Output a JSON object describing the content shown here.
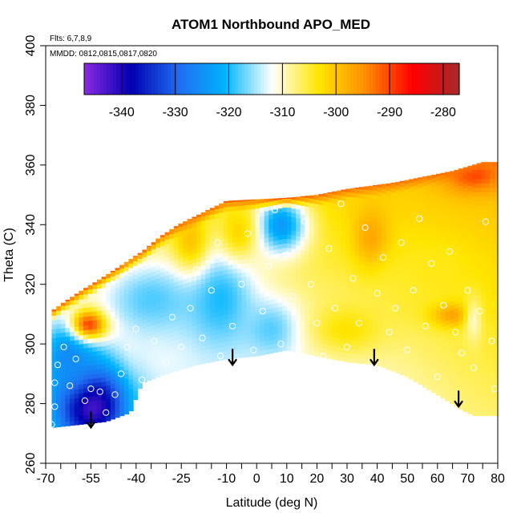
{
  "chart_data": {
    "type": "heatmap",
    "title": "ATOM1 Northbound APO_MED",
    "notes": [
      "Flts: 6,7,8,9",
      "MMDD: 0812,0815,0817,0820"
    ],
    "xlabel": "Latitude (deg N)",
    "ylabel": "Theta (C)",
    "xlim": [
      -70,
      80
    ],
    "ylim": [
      260,
      400
    ],
    "x_tick_labels": [
      "-70",
      "-55",
      "-40",
      "-25",
      "-10",
      "0",
      "10",
      "20",
      "30",
      "40",
      "50",
      "60",
      "70",
      "80"
    ],
    "x_tick_values": [
      -70,
      -55,
      -40,
      -25,
      -10,
      0,
      10,
      20,
      30,
      40,
      50,
      60,
      70,
      80
    ],
    "x_minor_ticks": [
      -65,
      -60,
      -50,
      -45,
      -35,
      -30,
      -20,
      -15,
      -5,
      5,
      15,
      25,
      35,
      45,
      55,
      65,
      75
    ],
    "y_tick_labels": [
      "260",
      "280",
      "300",
      "320",
      "340",
      "360",
      "380",
      "400"
    ],
    "y_tick_values": [
      260,
      280,
      300,
      320,
      340,
      360,
      380,
      400
    ],
    "colorbar": {
      "range": [
        -347,
        -277
      ],
      "tick_labels": [
        "-340",
        "-330",
        "-320",
        "-310",
        "-300",
        "-290",
        "-280"
      ],
      "tick_values": [
        -340,
        -330,
        -320,
        -310,
        -300,
        -290,
        -280
      ],
      "colors": [
        "#8a2be2",
        "#0000b0",
        "#1f6cf0",
        "#00b4ff",
        "#ffffff",
        "#ffe600",
        "#ff8c00",
        "#ff0000",
        "#a52a2a"
      ]
    },
    "field": {
      "upper_boundary": [
        [
          -68,
          311
        ],
        [
          -64,
          314
        ],
        [
          -58,
          318
        ],
        [
          -50,
          323
        ],
        [
          -44,
          327
        ],
        [
          -38,
          331
        ],
        [
          -32,
          336
        ],
        [
          -26,
          340
        ],
        [
          -20,
          343
        ],
        [
          -14,
          346
        ],
        [
          -10,
          348
        ],
        [
          10,
          349
        ],
        [
          20,
          350
        ],
        [
          30,
          352
        ],
        [
          45,
          354
        ],
        [
          55,
          356
        ],
        [
          65,
          358
        ],
        [
          75,
          361
        ]
      ],
      "lower_boundary": [
        [
          -68,
          272
        ],
        [
          -50,
          274
        ],
        [
          -42,
          277
        ],
        [
          -38,
          287
        ],
        [
          -30,
          290
        ],
        [
          -20,
          293
        ],
        [
          -10,
          295
        ],
        [
          0,
          296
        ],
        [
          10,
          298
        ],
        [
          20,
          296
        ],
        [
          30,
          294
        ],
        [
          40,
          293
        ],
        [
          50,
          289
        ],
        [
          60,
          283
        ],
        [
          68,
          278
        ],
        [
          72,
          276
        ],
        [
          80,
          276
        ]
      ],
      "x_max": 80,
      "anomalies": [
        {
          "lat": -55,
          "theta": 280,
          "value": -345,
          "radius": [
            12,
            14
          ]
        },
        {
          "lat": -62,
          "theta": 296,
          "value": -326,
          "radius": [
            10,
            14
          ]
        },
        {
          "lat": -55,
          "theta": 307,
          "value": -283,
          "radius": [
            6,
            5
          ]
        },
        {
          "lat": -35,
          "theta": 315,
          "value": -318,
          "radius": [
            18,
            14
          ]
        },
        {
          "lat": -12,
          "theta": 315,
          "value": -320,
          "radius": [
            12,
            18
          ]
        },
        {
          "lat": 8,
          "theta": 340,
          "value": -324,
          "radius": [
            9,
            10
          ]
        },
        {
          "lat": 5,
          "theta": 305,
          "value": -318,
          "radius": [
            10,
            10
          ]
        },
        {
          "lat": -22,
          "theta": 335,
          "value": -300,
          "radius": [
            6,
            10
          ]
        },
        {
          "lat": -6,
          "theta": 338,
          "value": -302,
          "radius": [
            6,
            9
          ]
        },
        {
          "lat": 38,
          "theta": 336,
          "value": -297,
          "radius": [
            6,
            10
          ]
        },
        {
          "lat": 30,
          "theta": 305,
          "value": -303,
          "radius": [
            12,
            8
          ]
        },
        {
          "lat": 52,
          "theta": 318,
          "value": -305,
          "radius": [
            10,
            10
          ]
        },
        {
          "lat": 65,
          "theta": 310,
          "value": -296,
          "radius": [
            7,
            4
          ]
        },
        {
          "lat": 60,
          "theta": 325,
          "value": -304,
          "radius": [
            12,
            10
          ]
        },
        {
          "lat": 72,
          "theta": 308,
          "value": -310,
          "radius": [
            3,
            8
          ]
        },
        {
          "lat": 72,
          "theta": 357,
          "value": -290,
          "radius": [
            10,
            6
          ]
        }
      ],
      "background_value": -307
    },
    "profile_arrows": [
      {
        "lat": -55,
        "theta": 272
      },
      {
        "lat": -8,
        "theta": 293
      },
      {
        "lat": 39,
        "theta": 293
      },
      {
        "lat": 67,
        "theta": 279
      }
    ],
    "sample_points": [
      [
        -68,
        273
      ],
      [
        -67,
        279
      ],
      [
        -67,
        287
      ],
      [
        -66,
        293
      ],
      [
        -64,
        299
      ],
      [
        -62,
        286
      ],
      [
        -60,
        295
      ],
      [
        -57,
        281
      ],
      [
        -55,
        285
      ],
      [
        -52,
        284
      ],
      [
        -50,
        277
      ],
      [
        -47,
        283
      ],
      [
        -45,
        290
      ],
      [
        -43,
        299
      ],
      [
        -40,
        305
      ],
      [
        -38,
        288
      ],
      [
        -34,
        301
      ],
      [
        -30,
        294
      ],
      [
        -28,
        309
      ],
      [
        -25,
        299
      ],
      [
        -22,
        312
      ],
      [
        -20,
        325
      ],
      [
        -18,
        302
      ],
      [
        -15,
        318
      ],
      [
        -13,
        334
      ],
      [
        -12,
        296
      ],
      [
        -8,
        306
      ],
      [
        -5,
        320
      ],
      [
        -3,
        337
      ],
      [
        -1,
        298
      ],
      [
        2,
        311
      ],
      [
        4,
        326
      ],
      [
        6,
        345
      ],
      [
        8,
        300
      ],
      [
        10,
        330
      ],
      [
        12,
        316
      ],
      [
        14,
        299
      ],
      [
        16,
        341
      ],
      [
        18,
        320
      ],
      [
        20,
        307
      ],
      [
        22,
        296
      ],
      [
        24,
        332
      ],
      [
        26,
        312
      ],
      [
        28,
        347
      ],
      [
        30,
        299
      ],
      [
        32,
        322
      ],
      [
        34,
        307
      ],
      [
        36,
        339
      ],
      [
        38,
        294
      ],
      [
        40,
        317
      ],
      [
        42,
        329
      ],
      [
        44,
        304
      ],
      [
        46,
        312
      ],
      [
        48,
        334
      ],
      [
        50,
        298
      ],
      [
        52,
        318
      ],
      [
        54,
        342
      ],
      [
        56,
        306
      ],
      [
        58,
        327
      ],
      [
        60,
        289
      ],
      [
        62,
        313
      ],
      [
        64,
        331
      ],
      [
        66,
        304
      ],
      [
        68,
        297
      ],
      [
        70,
        318
      ],
      [
        72,
        292
      ],
      [
        74,
        311
      ],
      [
        76,
        341
      ],
      [
        78,
        301
      ],
      [
        79,
        285
      ]
    ]
  }
}
